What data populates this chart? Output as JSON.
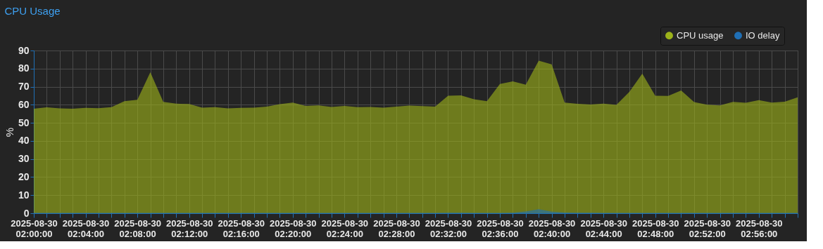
{
  "chart_data": {
    "type": "area",
    "title": "CPU Usage",
    "ylabel": "%",
    "x": [
      "2025-08-30T02:00",
      "2025-08-30T02:01",
      "2025-08-30T02:02",
      "2025-08-30T02:03",
      "2025-08-30T02:04",
      "2025-08-30T02:05",
      "2025-08-30T02:06",
      "2025-08-30T02:07",
      "2025-08-30T02:08",
      "2025-08-30T02:09",
      "2025-08-30T02:10",
      "2025-08-30T02:11",
      "2025-08-30T02:12",
      "2025-08-30T02:13",
      "2025-08-30T02:14",
      "2025-08-30T02:15",
      "2025-08-30T02:16",
      "2025-08-30T02:17",
      "2025-08-30T02:18",
      "2025-08-30T02:19",
      "2025-08-30T02:20",
      "2025-08-30T02:21",
      "2025-08-30T02:22",
      "2025-08-30T02:23",
      "2025-08-30T02:24",
      "2025-08-30T02:25",
      "2025-08-30T02:26",
      "2025-08-30T02:27",
      "2025-08-30T02:28",
      "2025-08-30T02:29",
      "2025-08-30T02:30",
      "2025-08-30T02:31",
      "2025-08-30T02:32",
      "2025-08-30T02:33",
      "2025-08-30T02:34",
      "2025-08-30T02:35",
      "2025-08-30T02:36",
      "2025-08-30T02:37",
      "2025-08-30T02:38",
      "2025-08-30T02:39",
      "2025-08-30T02:40",
      "2025-08-30T02:41",
      "2025-08-30T02:42",
      "2025-08-30T02:43",
      "2025-08-30T02:44",
      "2025-08-30T02:45",
      "2025-08-30T02:46",
      "2025-08-30T02:47",
      "2025-08-30T02:48",
      "2025-08-30T02:49",
      "2025-08-30T02:50",
      "2025-08-30T02:51",
      "2025-08-30T02:52",
      "2025-08-30T02:53",
      "2025-08-30T02:54",
      "2025-08-30T02:55",
      "2025-08-30T02:56",
      "2025-08-30T02:57",
      "2025-08-30T02:58",
      "2025-08-30T02:59"
    ],
    "series": [
      {
        "name": "CPU usage",
        "color": "#9cb21a",
        "values": [
          57.8,
          58.6,
          58.0,
          57.8,
          58.3,
          58.1,
          58.7,
          62.0,
          62.7,
          78.0,
          61.6,
          60.6,
          60.4,
          58.4,
          58.7,
          58.0,
          58.3,
          58.4,
          59.0,
          60.3,
          61.2,
          59.4,
          59.6,
          58.8,
          59.4,
          58.7,
          58.8,
          58.4,
          59.0,
          59.5,
          59.3,
          59.0,
          65.0,
          65.2,
          63.0,
          62.0,
          71.5,
          72.9,
          71.1,
          84.4,
          82.3,
          61.2,
          60.5,
          60.1,
          60.6,
          59.9,
          67.1,
          77.2,
          65.0,
          64.9,
          67.9,
          61.5,
          60.0,
          59.6,
          61.6,
          61.1,
          62.6,
          61.2,
          61.7,
          64.1
        ]
      },
      {
        "name": "IO delay",
        "color": "#1f6fb5",
        "values": [
          0.2,
          0.2,
          0.2,
          0.2,
          0.2,
          0.2,
          0.2,
          0.2,
          0.2,
          0.2,
          0.2,
          0.2,
          0.2,
          0.2,
          0.2,
          0.2,
          0.2,
          0.2,
          0.2,
          0.2,
          0.2,
          0.2,
          0.2,
          0.2,
          0.2,
          0.2,
          0.2,
          0.2,
          0.2,
          0.2,
          0.2,
          0.2,
          0.3,
          0.3,
          0.2,
          0.2,
          0.2,
          0.3,
          1.0,
          2.2,
          0.9,
          0.4,
          0.3,
          0.3,
          0.2,
          0.2,
          0.2,
          0.2,
          0.2,
          0.2,
          0.2,
          0.2,
          0.2,
          0.2,
          0.2,
          0.2,
          0.2,
          0.2,
          0.2,
          0.2
        ]
      }
    ],
    "xlim": [
      "2025-08-30T02:00",
      "2025-08-30T02:59"
    ],
    "xticks": [
      {
        "value": "2025-08-30T02:00",
        "label": "2025-08-30\n02:00:00"
      },
      {
        "value": "2025-08-30T02:01",
        "label": null
      },
      {
        "value": "2025-08-30T02:02",
        "label": null
      },
      {
        "value": "2025-08-30T02:03",
        "label": null
      },
      {
        "value": "2025-08-30T02:04",
        "label": "2025-08-30\n02:04:00"
      },
      {
        "value": "2025-08-30T02:05",
        "label": null
      },
      {
        "value": "2025-08-30T02:06",
        "label": null
      },
      {
        "value": "2025-08-30T02:07",
        "label": null
      },
      {
        "value": "2025-08-30T02:08",
        "label": "2025-08-30\n02:08:00"
      },
      {
        "value": "2025-08-30T02:09",
        "label": null
      },
      {
        "value": "2025-08-30T02:10",
        "label": null
      },
      {
        "value": "2025-08-30T02:11",
        "label": null
      },
      {
        "value": "2025-08-30T02:12",
        "label": "2025-08-30\n02:12:00"
      },
      {
        "value": "2025-08-30T02:13",
        "label": null
      },
      {
        "value": "2025-08-30T02:14",
        "label": null
      },
      {
        "value": "2025-08-30T02:15",
        "label": null
      },
      {
        "value": "2025-08-30T02:16",
        "label": "2025-08-30\n02:16:00"
      },
      {
        "value": "2025-08-30T02:17",
        "label": null
      },
      {
        "value": "2025-08-30T02:18",
        "label": null
      },
      {
        "value": "2025-08-30T02:19",
        "label": null
      },
      {
        "value": "2025-08-30T02:20",
        "label": "2025-08-30\n02:20:00"
      },
      {
        "value": "2025-08-30T02:21",
        "label": null
      },
      {
        "value": "2025-08-30T02:22",
        "label": null
      },
      {
        "value": "2025-08-30T02:23",
        "label": null
      },
      {
        "value": "2025-08-30T02:24",
        "label": "2025-08-30\n02:24:00"
      },
      {
        "value": "2025-08-30T02:25",
        "label": null
      },
      {
        "value": "2025-08-30T02:26",
        "label": null
      },
      {
        "value": "2025-08-30T02:27",
        "label": null
      },
      {
        "value": "2025-08-30T02:28",
        "label": "2025-08-30\n02:28:00"
      },
      {
        "value": "2025-08-30T02:29",
        "label": null
      },
      {
        "value": "2025-08-30T02:30",
        "label": null
      },
      {
        "value": "2025-08-30T02:31",
        "label": null
      },
      {
        "value": "2025-08-30T02:32",
        "label": "2025-08-30\n02:32:00"
      },
      {
        "value": "2025-08-30T02:33",
        "label": null
      },
      {
        "value": "2025-08-30T02:34",
        "label": null
      },
      {
        "value": "2025-08-30T02:35",
        "label": null
      },
      {
        "value": "2025-08-30T02:36",
        "label": "2025-08-30\n02:36:00"
      },
      {
        "value": "2025-08-30T02:37",
        "label": null
      },
      {
        "value": "2025-08-30T02:38",
        "label": null
      },
      {
        "value": "2025-08-30T02:39",
        "label": null
      },
      {
        "value": "2025-08-30T02:40",
        "label": "2025-08-30\n02:40:00"
      },
      {
        "value": "2025-08-30T02:41",
        "label": null
      },
      {
        "value": "2025-08-30T02:42",
        "label": null
      },
      {
        "value": "2025-08-30T02:43",
        "label": null
      },
      {
        "value": "2025-08-30T02:44",
        "label": "2025-08-30\n02:44:00"
      },
      {
        "value": "2025-08-30T02:45",
        "label": null
      },
      {
        "value": "2025-08-30T02:46",
        "label": null
      },
      {
        "value": "2025-08-30T02:47",
        "label": null
      },
      {
        "value": "2025-08-30T02:48",
        "label": "2025-08-30\n02:48:00"
      },
      {
        "value": "2025-08-30T02:49",
        "label": null
      },
      {
        "value": "2025-08-30T02:50",
        "label": null
      },
      {
        "value": "2025-08-30T02:51",
        "label": null
      },
      {
        "value": "2025-08-30T02:52",
        "label": "2025-08-30\n02:52:00"
      },
      {
        "value": "2025-08-30T02:53",
        "label": null
      },
      {
        "value": "2025-08-30T02:54",
        "label": null
      },
      {
        "value": "2025-08-30T02:55",
        "label": null
      },
      {
        "value": "2025-08-30T02:56",
        "label": "2025-08-30\n02:56:00"
      },
      {
        "value": "2025-08-30T02:57",
        "label": null
      },
      {
        "value": "2025-08-30T02:58",
        "label": null
      },
      {
        "value": "2025-08-30T02:59",
        "label": null
      }
    ],
    "ylim": [
      0,
      90
    ],
    "yticks": [
      0,
      10,
      20,
      30,
      40,
      50,
      60,
      70,
      80,
      90
    ],
    "grid": true,
    "legend": "top right"
  }
}
